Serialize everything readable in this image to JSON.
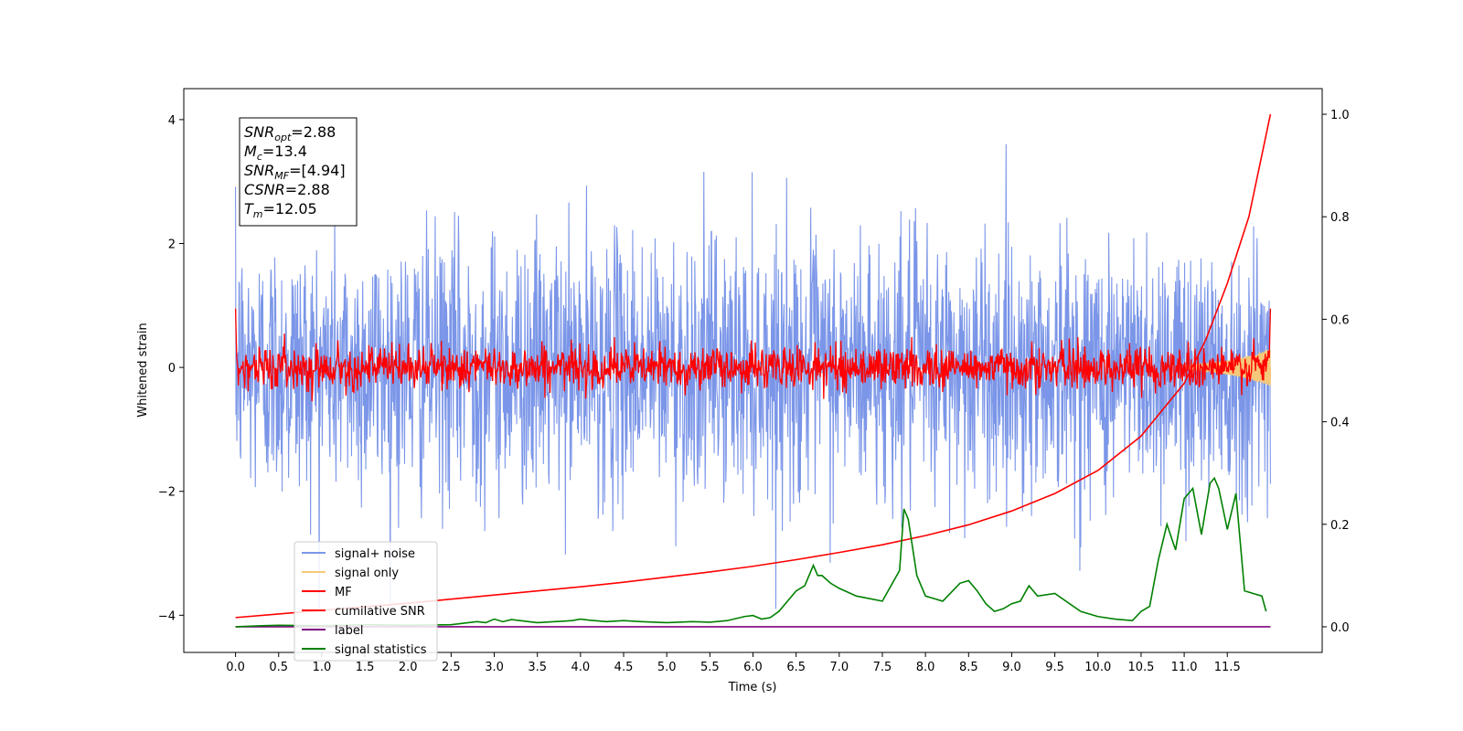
{
  "chart_data": {
    "type": "line",
    "xlabel": "Time (s)",
    "ylabel": "Whitened strain",
    "ylabel_right": "",
    "xlim": [
      -0.6,
      12.6
    ],
    "ylim": [
      -4.6,
      4.5
    ],
    "ylim_right": [
      -0.05,
      1.05
    ],
    "x_ticks": [
      "0.0",
      "0.5",
      "1.0",
      "1.5",
      "2.0",
      "2.5",
      "3.0",
      "3.5",
      "4.0",
      "4.5",
      "5.0",
      "5.5",
      "6.0",
      "6.5",
      "7.0",
      "7.5",
      "8.0",
      "8.5",
      "9.0",
      "9.5",
      "10.0",
      "10.5",
      "11.0",
      "11.5"
    ],
    "y_ticks": [
      "−4",
      "−2",
      "0",
      "2",
      "4"
    ],
    "y_ticks_right": [
      "0.0",
      "0.2",
      "0.4",
      "0.6",
      "0.8",
      "1.0"
    ],
    "grid": false,
    "legend_position": "lower-left",
    "annotation": {
      "lines": [
        {
          "var": "SNR",
          "sub": "opt",
          "value": "=2.88"
        },
        {
          "var": "M",
          "sub": "c",
          "value": "=13.4"
        },
        {
          "var": "SNR",
          "sub": "MF",
          "value": "=[4.94]"
        },
        {
          "var": "CSNR",
          "sub": "",
          "value": "=2.88"
        },
        {
          "var": "T",
          "sub": "m",
          "value": "=12.05"
        }
      ]
    },
    "series": [
      {
        "name": "signal+ noise",
        "color": "#7b96e8",
        "axis": "left",
        "t_range": [
          0.0,
          12.0
        ],
        "peak_envelope": [
          3.6,
          -3.8
        ]
      },
      {
        "name": "signal only",
        "color": "#f5c87a",
        "axis": "left",
        "t_range": [
          0.0,
          12.0
        ]
      },
      {
        "name": "MF",
        "color": "#ff0000",
        "axis": "left",
        "t_range": [
          0.0,
          12.0
        ]
      },
      {
        "name": "cumilative SNR",
        "color": "#ff0000",
        "axis": "right",
        "x": [
          0.0,
          0.5,
          1.0,
          1.5,
          2.0,
          2.5,
          3.0,
          3.5,
          4.0,
          4.5,
          5.0,
          5.5,
          6.0,
          6.5,
          7.0,
          7.5,
          8.0,
          8.5,
          9.0,
          9.5,
          10.0,
          10.5,
          11.0,
          11.25,
          11.5,
          11.75,
          12.0
        ],
        "y": [
          0.018,
          0.025,
          0.032,
          0.039,
          0.046,
          0.054,
          0.062,
          0.07,
          0.078,
          0.087,
          0.097,
          0.107,
          0.118,
          0.131,
          0.145,
          0.16,
          0.178,
          0.199,
          0.226,
          0.26,
          0.305,
          0.372,
          0.475,
          0.56,
          0.67,
          0.8,
          1.0
        ]
      },
      {
        "name": "label",
        "color": "#800080",
        "axis": "right",
        "x": [
          0.0,
          12.0
        ],
        "y": [
          0.0,
          0.0
        ]
      },
      {
        "name": "signal statistics",
        "color": "#008000",
        "axis": "right",
        "x": [
          0.0,
          0.3,
          0.5,
          1.0,
          1.5,
          2.0,
          2.5,
          2.8,
          2.9,
          3.0,
          3.1,
          3.2,
          3.3,
          3.5,
          3.7,
          3.8,
          3.9,
          4.0,
          4.1,
          4.3,
          4.5,
          4.7,
          5.0,
          5.3,
          5.5,
          5.7,
          5.9,
          6.0,
          6.1,
          6.2,
          6.3,
          6.5,
          6.6,
          6.7,
          6.75,
          6.8,
          6.9,
          7.0,
          7.2,
          7.5,
          7.7,
          7.75,
          7.8,
          7.9,
          8.0,
          8.2,
          8.4,
          8.5,
          8.6,
          8.7,
          8.8,
          8.9,
          9.0,
          9.1,
          9.2,
          9.3,
          9.5,
          9.8,
          10.0,
          10.2,
          10.4,
          10.5,
          10.6,
          10.7,
          10.8,
          10.9,
          11.0,
          11.1,
          11.2,
          11.3,
          11.35,
          11.4,
          11.5,
          11.6,
          11.7,
          11.8,
          11.9,
          11.95
        ],
        "y": [
          0.0,
          0.002,
          0.003,
          0.002,
          0.004,
          0.003,
          0.004,
          0.01,
          0.008,
          0.015,
          0.01,
          0.014,
          0.012,
          0.008,
          0.01,
          0.011,
          0.012,
          0.015,
          0.013,
          0.01,
          0.012,
          0.01,
          0.008,
          0.01,
          0.009,
          0.012,
          0.02,
          0.022,
          0.015,
          0.018,
          0.03,
          0.07,
          0.08,
          0.12,
          0.1,
          0.1,
          0.085,
          0.075,
          0.06,
          0.05,
          0.11,
          0.23,
          0.21,
          0.1,
          0.06,
          0.05,
          0.085,
          0.09,
          0.07,
          0.045,
          0.03,
          0.035,
          0.045,
          0.05,
          0.08,
          0.06,
          0.065,
          0.03,
          0.02,
          0.015,
          0.012,
          0.03,
          0.04,
          0.13,
          0.2,
          0.15,
          0.25,
          0.27,
          0.18,
          0.28,
          0.29,
          0.27,
          0.19,
          0.26,
          0.07,
          0.065,
          0.06,
          0.03
        ]
      }
    ]
  }
}
